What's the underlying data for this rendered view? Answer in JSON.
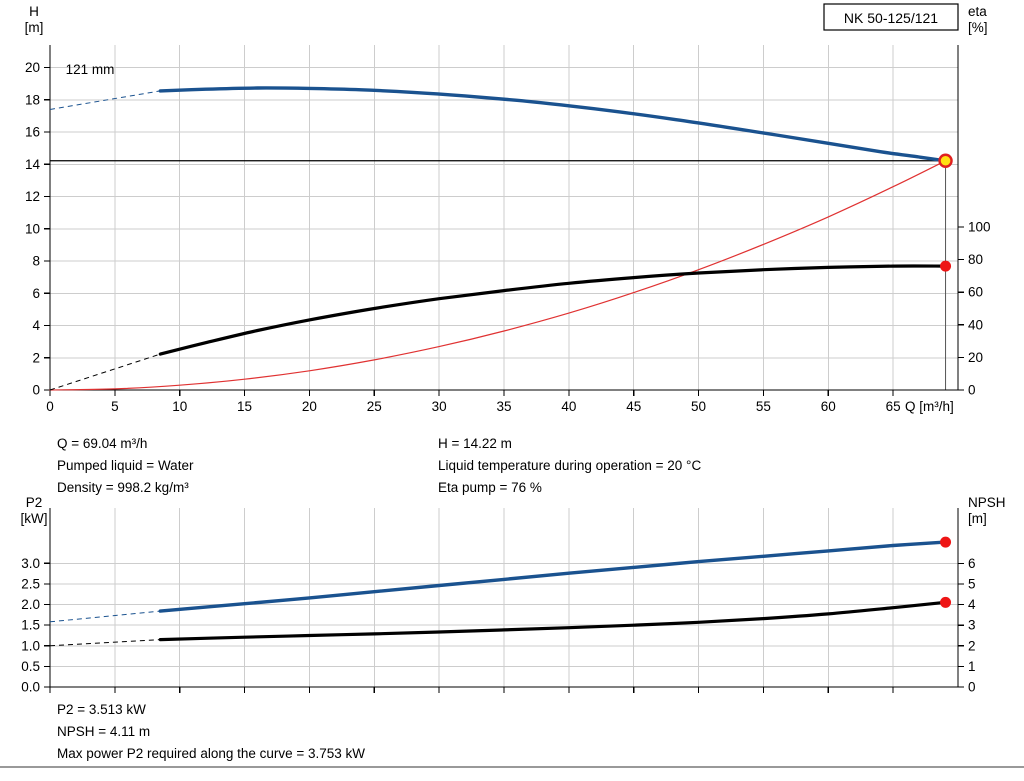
{
  "pump": {
    "type_label": "NK 50-125/121",
    "impeller_label": "121 mm"
  },
  "duty_point": {
    "Q_m3h": 69.04,
    "H_m": 14.22,
    "eta_pct": 76,
    "P2_kW": 3.513,
    "NPSH_m": 4.11,
    "P2_max_kW": 3.753,
    "liquid": "Water",
    "temperature_C": 20,
    "density_kg_m3": 998.2
  },
  "annotations_mid": {
    "left": [
      "Q = 69.04 m³/h",
      "Pumped liquid = Water",
      "Density = 998.2 kg/m³"
    ],
    "right": [
      "H = 14.22 m",
      "Liquid temperature during operation = 20 °C",
      "Eta pump = 76 %"
    ]
  },
  "annotations_bottom": [
    "P2 = 3.513 kW",
    "NPSH = 4.11 m",
    "Max power P2 required along the curve = 3.753 kW"
  ],
  "colors": {
    "curve_blue": "#1a528f",
    "curve_black": "#000000",
    "curve_red": "#e03232",
    "marker_red": "#ee1515",
    "marker_yellow": "#ffe013",
    "grid": "#cdcdcd"
  },
  "chart_data": [
    {
      "id": "head-eta-chart",
      "type": "line",
      "title": "NK 50-125/121",
      "impeller_label": "121 mm",
      "impeller_label_pos": [
        1.2,
        19.6
      ],
      "x_axis": {
        "label": "Q [m³/h]",
        "min": 0,
        "max": 70,
        "ticks": [
          0,
          5,
          10,
          15,
          20,
          25,
          30,
          35,
          40,
          45,
          50,
          55,
          60,
          65
        ],
        "show_labels": true,
        "decimals": 0
      },
      "y_left": {
        "label_lines": [
          "H",
          "[m]"
        ],
        "min": 0,
        "max": 21.4,
        "ticks": [
          0,
          2,
          4,
          6,
          8,
          10,
          12,
          14,
          16,
          18,
          20
        ],
        "decimals": 0
      },
      "y_right": {
        "label_lines": [
          "eta",
          "[%]"
        ],
        "min": 0,
        "max": 211.7,
        "ticks": [
          0,
          20,
          40,
          60,
          80,
          100
        ],
        "decimals": 0
      },
      "series": [
        {
          "name": "system-curve",
          "axis": "left",
          "color": "#e03232",
          "width": 1.2,
          "points": [
            [
              0,
              0
            ],
            [
              5,
              0.07
            ],
            [
              10,
              0.3
            ],
            [
              15,
              0.67
            ],
            [
              20,
              1.19
            ],
            [
              25,
              1.87
            ],
            [
              30,
              2.69
            ],
            [
              35,
              3.66
            ],
            [
              40,
              4.77
            ],
            [
              45,
              6.04
            ],
            [
              50,
              7.46
            ],
            [
              55,
              9.03
            ],
            [
              60,
              10.74
            ],
            [
              65,
              12.61
            ],
            [
              69.04,
              14.22
            ]
          ]
        },
        {
          "name": "eta-curve",
          "axis": "right",
          "color": "#000000",
          "width": 3.2,
          "dash_lead": [
            [
              0,
              0
            ],
            [
              8.5,
              22
            ]
          ],
          "points": [
            [
              8.5,
              22
            ],
            [
              12,
              29
            ],
            [
              16,
              36.5
            ],
            [
              20,
              43
            ],
            [
              25,
              50
            ],
            [
              30,
              56
            ],
            [
              35,
              61
            ],
            [
              40,
              65.5
            ],
            [
              45,
              69
            ],
            [
              50,
              71.8
            ],
            [
              55,
              73.8
            ],
            [
              60,
              75.2
            ],
            [
              65,
              76
            ],
            [
              69.04,
              76
            ]
          ]
        },
        {
          "name": "head-curve",
          "axis": "left",
          "color": "#1a528f",
          "width": 3.4,
          "dash_lead": [
            [
              0,
              17.4
            ],
            [
              8.5,
              18.55
            ]
          ],
          "points": [
            [
              8.5,
              18.55
            ],
            [
              12,
              18.66
            ],
            [
              16,
              18.73
            ],
            [
              20,
              18.71
            ],
            [
              24,
              18.62
            ],
            [
              28,
              18.46
            ],
            [
              32,
              18.24
            ],
            [
              36,
              17.97
            ],
            [
              40,
              17.63
            ],
            [
              44,
              17.24
            ],
            [
              48,
              16.8
            ],
            [
              52,
              16.32
            ],
            [
              56,
              15.82
            ],
            [
              60,
              15.3
            ],
            [
              64,
              14.78
            ],
            [
              67,
              14.45
            ],
            [
              69.04,
              14.22
            ]
          ]
        }
      ],
      "ref_lines": [
        {
          "name": "duty-head-line",
          "type": "h",
          "y": 14.22,
          "x1": 0,
          "x2": 69.04,
          "color": "#000000",
          "width": 1.2
        },
        {
          "name": "duty-flow-line",
          "type": "v",
          "x": 69.04,
          "y1": 0,
          "y2": 14.22,
          "color": "#555555",
          "width": 1
        }
      ],
      "markers": [
        {
          "name": "eta-end-point",
          "x": 69.04,
          "y": 76,
          "axis": "right",
          "r": 5.5,
          "fill": "#ee1515",
          "stroke": "none",
          "stroke_width": 0
        },
        {
          "name": "duty-point",
          "x": 69.04,
          "y": 14.22,
          "axis": "left",
          "r": 6,
          "fill": "#ffe013",
          "stroke": "#e02020",
          "stroke_width": 2.4
        }
      ]
    },
    {
      "id": "p2-npsh-chart",
      "type": "line",
      "x_axis": {
        "label": "",
        "min": 0,
        "max": 70,
        "ticks": [
          0,
          5,
          10,
          15,
          20,
          25,
          30,
          35,
          40,
          45,
          50,
          55,
          60,
          65
        ],
        "show_labels": false,
        "decimals": 0
      },
      "y_left": {
        "label_lines": [
          "P2",
          "[kW]"
        ],
        "min": 0,
        "max": 4.34,
        "ticks": [
          0,
          0.5,
          1,
          1.5,
          2,
          2.5,
          3
        ],
        "decimals": 1
      },
      "y_right": {
        "label_lines": [
          "NPSH",
          "[m]"
        ],
        "min": 0,
        "max": 8.69,
        "ticks": [
          0,
          1,
          2,
          3,
          4,
          5,
          6
        ],
        "decimals": 0
      },
      "series": [
        {
          "name": "npsh-curve",
          "axis": "right",
          "color": "#000000",
          "width": 3.2,
          "dash_lead": [
            [
              0,
              2.0
            ],
            [
              8.5,
              2.3
            ]
          ],
          "points": [
            [
              8.5,
              2.3
            ],
            [
              15,
              2.42
            ],
            [
              20,
              2.5
            ],
            [
              25,
              2.58
            ],
            [
              30,
              2.67
            ],
            [
              35,
              2.77
            ],
            [
              40,
              2.88
            ],
            [
              45,
              3.0
            ],
            [
              50,
              3.14
            ],
            [
              55,
              3.32
            ],
            [
              60,
              3.55
            ],
            [
              65,
              3.85
            ],
            [
              69.04,
              4.11
            ]
          ]
        },
        {
          "name": "p2-curve",
          "axis": "left",
          "color": "#1a528f",
          "width": 3.4,
          "dash_lead": [
            [
              0,
              1.58
            ],
            [
              8.5,
              1.84
            ]
          ],
          "points": [
            [
              8.5,
              1.84
            ],
            [
              15,
              2.02
            ],
            [
              20,
              2.16
            ],
            [
              25,
              2.31
            ],
            [
              30,
              2.46
            ],
            [
              35,
              2.61
            ],
            [
              40,
              2.76
            ],
            [
              45,
              2.9
            ],
            [
              50,
              3.04
            ],
            [
              55,
              3.17
            ],
            [
              60,
              3.3
            ],
            [
              65,
              3.43
            ],
            [
              69.04,
              3.513
            ]
          ]
        }
      ],
      "ref_lines": [],
      "markers": [
        {
          "name": "npsh-end-point",
          "x": 69.04,
          "y": 4.11,
          "axis": "right",
          "r": 5.5,
          "fill": "#ee1515",
          "stroke": "none",
          "stroke_width": 0
        },
        {
          "name": "p2-end-point",
          "x": 69.04,
          "y": 3.513,
          "axis": "left",
          "r": 5.5,
          "fill": "#ee1515",
          "stroke": "none",
          "stroke_width": 0
        }
      ]
    }
  ]
}
